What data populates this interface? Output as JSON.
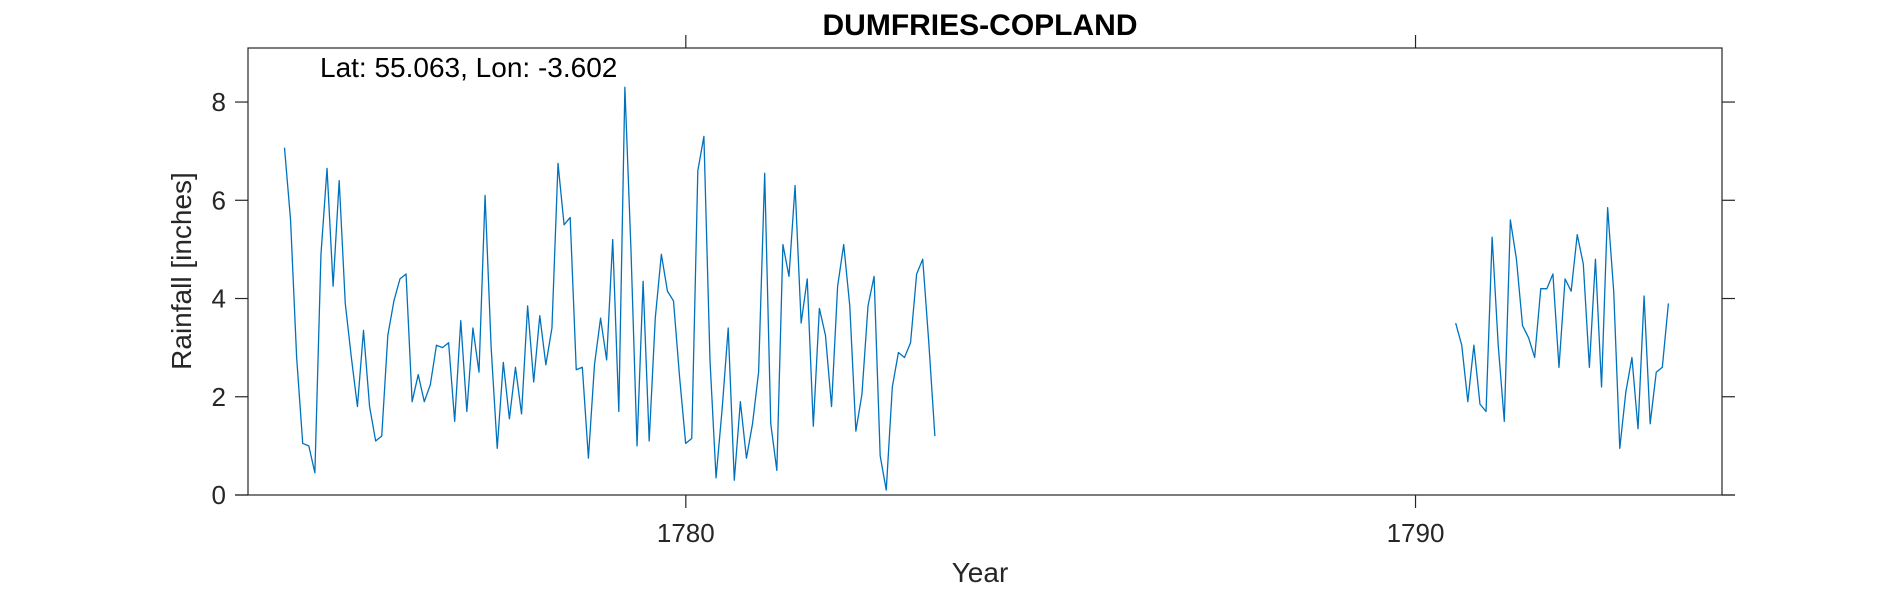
{
  "chart_data": {
    "type": "line",
    "title": "DUMFRIES-COPLAND",
    "annotation": "Lat: 55.063, Lon: -3.602",
    "xlabel": "Year",
    "ylabel": "Rainfall [inches]",
    "xlim": [
      1774,
      1794.2
    ],
    "ylim": [
      0,
      9.1
    ],
    "x_ticks": [
      1780,
      1790
    ],
    "x_tick_labels": [
      "1780",
      "1790"
    ],
    "y_ticks": [
      0,
      2,
      4,
      6,
      8
    ],
    "y_tick_labels": [
      "0",
      "2",
      "4",
      "6",
      "8"
    ],
    "grid": false,
    "color": "#0072BD",
    "segments": [
      {
        "start_year": 1774.5,
        "step": 0.0833,
        "values": [
          7.07,
          5.6,
          2.8,
          1.05,
          1.0,
          0.45,
          4.9,
          6.65,
          4.25,
          6.4,
          3.9,
          2.8,
          1.8,
          3.35,
          1.8,
          1.1,
          1.2,
          3.25,
          3.95,
          4.4,
          4.5,
          1.9,
          2.45,
          1.9,
          2.25,
          3.05,
          3.0,
          3.1,
          1.5,
          3.55,
          1.7,
          3.4,
          2.5,
          6.1,
          3.0,
          0.95,
          2.7,
          1.55,
          2.6,
          1.65,
          3.85,
          2.3,
          3.65,
          2.65,
          3.4,
          6.75,
          5.5,
          5.65,
          2.55,
          2.6,
          0.75,
          2.65,
          3.6,
          2.75,
          5.2,
          1.7,
          8.3,
          5.0,
          1.0,
          4.35,
          1.1,
          3.6,
          4.9,
          4.15,
          3.95,
          2.4,
          1.05,
          1.15,
          6.6,
          7.3,
          2.75,
          0.35,
          1.75,
          3.4,
          0.3,
          1.9,
          0.75,
          1.45,
          2.5,
          6.55,
          1.45,
          0.5,
          5.1,
          4.45,
          6.3,
          3.5,
          4.4,
          1.4,
          3.8,
          3.25,
          1.8,
          4.25,
          5.1,
          3.85,
          1.3,
          2.05,
          3.85,
          4.45,
          0.8,
          0.1,
          2.2,
          2.9,
          2.8,
          3.1,
          4.5,
          4.8,
          3.1,
          1.2
        ]
      },
      {
        "start_year": 1790.55,
        "step": 0.0833,
        "values": [
          3.5,
          3.05,
          1.9,
          3.05,
          1.85,
          1.7,
          5.25,
          3.05,
          1.5,
          5.6,
          4.8,
          3.45,
          3.2,
          2.8,
          4.2,
          4.2,
          4.5,
          2.6,
          4.4,
          4.15,
          5.3,
          4.7,
          2.6,
          4.8,
          2.2,
          5.85,
          4.15,
          0.95,
          2.1,
          2.8,
          1.35,
          4.05,
          1.45,
          2.5,
          2.6,
          3.9
        ]
      }
    ]
  }
}
